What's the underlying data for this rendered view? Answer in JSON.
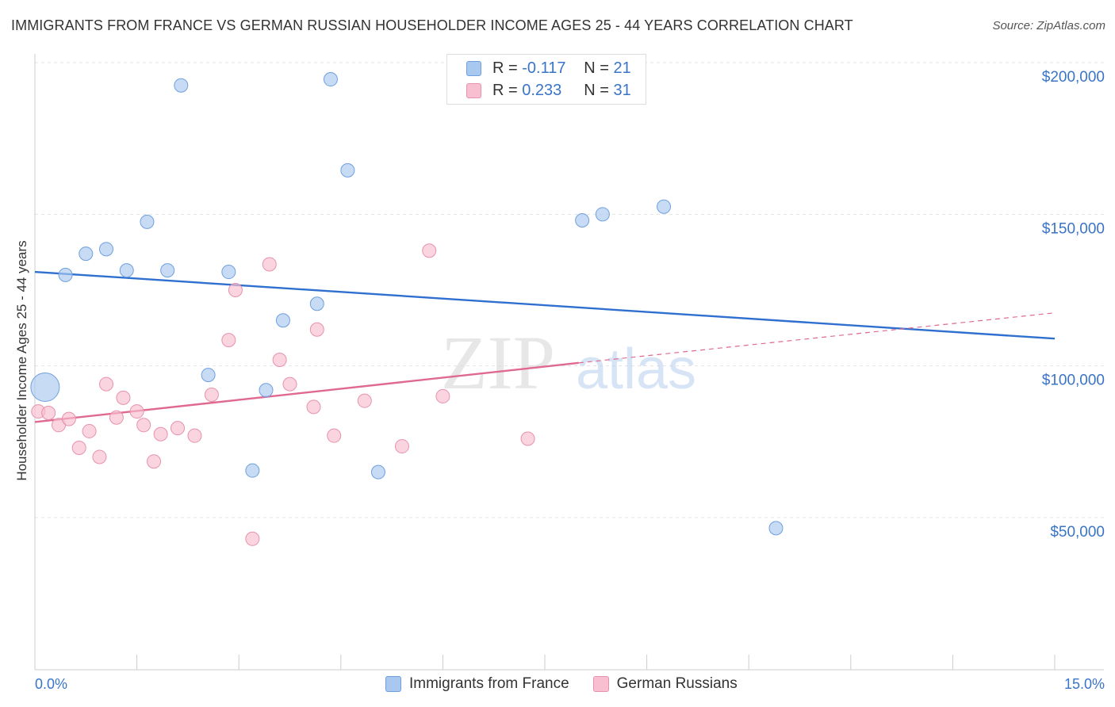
{
  "title": "IMMIGRANTS FROM FRANCE VS GERMAN RUSSIAN HOUSEHOLDER INCOME AGES 25 - 44 YEARS CORRELATION CHART",
  "source": "Source: ZipAtlas.com",
  "watermark": {
    "zip": "ZIP",
    "atlas": "atlas"
  },
  "legend": {
    "r_label": "R =",
    "n_label": "N =",
    "series": [
      {
        "name": "Immigrants from France",
        "r": "-0.117",
        "n": "21",
        "color": "#a9c8f0",
        "stroke": "#6fa0dd"
      },
      {
        "name": "German Russians",
        "r": "0.233",
        "n": "31",
        "color": "#f7bfd0",
        "stroke": "#e891ad"
      }
    ]
  },
  "chart_data": {
    "type": "scatter",
    "title": "IMMIGRANTS FROM FRANCE VS GERMAN RUSSIAN HOUSEHOLDER INCOME AGES 25 - 44 YEARS CORRELATION CHART",
    "xlabel": "",
    "ylabel": "Householder Income Ages 25 - 44 years",
    "xlim": [
      0,
      15
    ],
    "ylim": [
      0,
      210000
    ],
    "x_tick_labels": [
      "0.0%",
      "15.0%"
    ],
    "y_ticks": [
      50000,
      100000,
      150000,
      200000
    ],
    "y_tick_labels": [
      "$50,000",
      "$100,000",
      "$150,000",
      "$200,000"
    ],
    "grid": true,
    "legend_position": "top-center",
    "series": [
      {
        "name": "Immigrants from France",
        "color": "#a9c8f0",
        "stroke": "#6fa0dd",
        "line_color": "#2e6fcf",
        "trend": {
          "x0": 0.0,
          "y0": 131000,
          "x1": 15.0,
          "y1": 109000
        },
        "points": [
          {
            "x": 0.15,
            "y": 93000,
            "big": true
          },
          {
            "x": 0.45,
            "y": 130000
          },
          {
            "x": 0.75,
            "y": 137000
          },
          {
            "x": 1.05,
            "y": 138500
          },
          {
            "x": 1.35,
            "y": 131500
          },
          {
            "x": 1.65,
            "y": 147500
          },
          {
            "x": 1.95,
            "y": 131500
          },
          {
            "x": 2.15,
            "y": 192500
          },
          {
            "x": 2.55,
            "y": 97000
          },
          {
            "x": 2.85,
            "y": 131000
          },
          {
            "x": 3.2,
            "y": 65500
          },
          {
            "x": 3.4,
            "y": 92000
          },
          {
            "x": 3.65,
            "y": 115000
          },
          {
            "x": 4.15,
            "y": 120500
          },
          {
            "x": 4.35,
            "y": 194500
          },
          {
            "x": 4.6,
            "y": 164500
          },
          {
            "x": 5.05,
            "y": 65000
          },
          {
            "x": 8.05,
            "y": 148000
          },
          {
            "x": 8.35,
            "y": 150000
          },
          {
            "x": 9.25,
            "y": 152500
          },
          {
            "x": 10.9,
            "y": 46500
          }
        ]
      },
      {
        "name": "German Russians",
        "color": "#f7bfd0",
        "stroke": "#e891ad",
        "line_color": "#e0698f",
        "trend": {
          "x0": 0.0,
          "y0": 81500,
          "x1": 8.0,
          "y1": 101000
        },
        "trend_dashed": {
          "x0": 8.0,
          "y0": 101000,
          "x1": 15.0,
          "y1": 117500
        },
        "points": [
          {
            "x": 0.05,
            "y": 85000
          },
          {
            "x": 0.2,
            "y": 84500
          },
          {
            "x": 0.35,
            "y": 80500
          },
          {
            "x": 0.5,
            "y": 82500
          },
          {
            "x": 0.65,
            "y": 73000
          },
          {
            "x": 0.8,
            "y": 78500
          },
          {
            "x": 0.95,
            "y": 70000
          },
          {
            "x": 1.05,
            "y": 94000
          },
          {
            "x": 1.2,
            "y": 83000
          },
          {
            "x": 1.3,
            "y": 89500
          },
          {
            "x": 1.5,
            "y": 85000
          },
          {
            "x": 1.6,
            "y": 80500
          },
          {
            "x": 1.75,
            "y": 68500
          },
          {
            "x": 1.85,
            "y": 77500
          },
          {
            "x": 2.1,
            "y": 79500
          },
          {
            "x": 2.35,
            "y": 77000
          },
          {
            "x": 2.6,
            "y": 90500
          },
          {
            "x": 2.85,
            "y": 108500
          },
          {
            "x": 2.95,
            "y": 125000
          },
          {
            "x": 3.2,
            "y": 43000
          },
          {
            "x": 3.45,
            "y": 133500
          },
          {
            "x": 3.6,
            "y": 102000
          },
          {
            "x": 3.75,
            "y": 94000
          },
          {
            "x": 4.1,
            "y": 86500
          },
          {
            "x": 4.15,
            "y": 112000
          },
          {
            "x": 4.4,
            "y": 77000
          },
          {
            "x": 4.85,
            "y": 88500
          },
          {
            "x": 5.4,
            "y": 73500
          },
          {
            "x": 5.8,
            "y": 138000
          },
          {
            "x": 6.0,
            "y": 90000
          },
          {
            "x": 7.25,
            "y": 76000
          }
        ]
      }
    ]
  }
}
